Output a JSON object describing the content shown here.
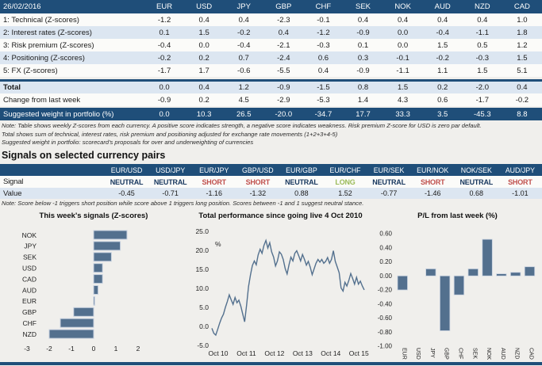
{
  "page": {
    "accent_navy": "#1f4e79",
    "row_alt": "#dce6f1",
    "bar_color": "#53708e",
    "bar_stroke": "#c9d2e0",
    "neutral_color": "#17375e",
    "short_color": "#c0504d",
    "long_color": "#9bbb59"
  },
  "scorecard_table": {
    "date": "26/02/2016",
    "currencies": [
      "EUR",
      "USD",
      "JPY",
      "GBP",
      "CHF",
      "SEK",
      "NOK",
      "AUD",
      "NZD",
      "CAD"
    ],
    "rows": [
      {
        "label": "1: Technical (Z-scores)",
        "values": [
          "-1.2",
          "0.4",
          "0.4",
          "-2.3",
          "-0.1",
          "0.4",
          "0.4",
          "0.4",
          "0.4",
          "1.0"
        ]
      },
      {
        "label": "2: Interest rates (Z-scores)",
        "values": [
          "0.1",
          "1.5",
          "-0.2",
          "0.4",
          "-1.2",
          "-0.9",
          "0.0",
          "-0.4",
          "-1.1",
          "1.8"
        ]
      },
      {
        "label": "3: Risk premium (Z-scores)",
        "values": [
          "-0.4",
          "0.0",
          "-0.4",
          "-2.1",
          "-0.3",
          "0.1",
          "0.0",
          "1.5",
          "0.5",
          "1.2"
        ]
      },
      {
        "label": "4: Positioning (Z-scores)",
        "values": [
          "-0.2",
          "0.2",
          "0.7",
          "-2.4",
          "0.6",
          "0.3",
          "-0.1",
          "-0.2",
          "-0.3",
          "1.5"
        ]
      },
      {
        "label": "5: FX (Z-scores)",
        "values": [
          "-1.7",
          "1.7",
          "-0.6",
          "-5.5",
          "0.4",
          "-0.9",
          "-1.1",
          "1.1",
          "1.5",
          "5.1"
        ]
      }
    ],
    "total_row": {
      "label": "Total",
      "values": [
        "0.0",
        "0.4",
        "1.2",
        "-0.9",
        "-1.5",
        "0.8",
        "1.5",
        "0.2",
        "-2.0",
        "0.4"
      ]
    },
    "change_row": {
      "label": "Change from last week",
      "values": [
        "-0.9",
        "0.2",
        "4.5",
        "-2.9",
        "-5.3",
        "1.4",
        "4.3",
        "0.6",
        "-1.7",
        "-0.2"
      ]
    },
    "weight_row": {
      "label": "Suggested weight in portfolio (%)",
      "values": [
        "0.0",
        "10.3",
        "26.5",
        "-20.0",
        "-34.7",
        "17.7",
        "33.3",
        "3.5",
        "-45.3",
        "8.8"
      ]
    },
    "notes": [
      "Note: Table shows weekly Z-scores from each currency. A positive score indicates strength, a negative score indicates weakness. Risk premium Z-score for USD is zero par default.",
      "Total shows sum of technical, interest rates, risk premium and positioning adjusted for exchange rate movements (1+2+3+4-5)",
      "Suggested weight in portfolio: scorecard's proposals for over and underweighting of currencies"
    ]
  },
  "signals_section": {
    "heading": "Signals on selected currency pairs",
    "pairs": [
      "EUR/USD",
      "USD/JPY",
      "EUR/JPY",
      "GBP/USD",
      "EUR/GBP",
      "EUR/CHF",
      "EUR/SEK",
      "EUR/NOK",
      "NOK/SEK",
      "AUD/JPY"
    ],
    "signal_label": "Signal",
    "value_label": "Value",
    "signals": [
      "NEUTRAL",
      "NEUTRAL",
      "SHORT",
      "SHORT",
      "NEUTRAL",
      "LONG",
      "NEUTRAL",
      "SHORT",
      "NEUTRAL",
      "SHORT"
    ],
    "values": [
      "-0.45",
      "-0.71",
      "-1.16",
      "-1.32",
      "0.88",
      "1.52",
      "-0.77",
      "-1.46",
      "0.68",
      "-1.01"
    ],
    "note": "Note: Score below -1 triggers short position while score above 1 triggers long position. Scores between -1 and 1 suggest neutral stance."
  },
  "chart_data": [
    {
      "type": "bar",
      "orientation": "horizontal",
      "title": "This week's signals (Z-scores)",
      "categories": [
        "NOK",
        "JPY",
        "SEK",
        "USD",
        "CAD",
        "AUD",
        "EUR",
        "GBP",
        "CHF",
        "NZD"
      ],
      "values": [
        1.5,
        1.2,
        0.8,
        0.4,
        0.4,
        0.2,
        0.0,
        -0.9,
        -1.5,
        -2.0
      ],
      "xticks": [
        -3,
        -2,
        -1,
        0,
        1,
        2
      ],
      "xlim": [
        -3.3,
        2.6
      ],
      "grid": false
    },
    {
      "type": "line",
      "title": "Total performance since going live 4 Oct 2010",
      "unit_label": "%",
      "ylim": [
        -5,
        25
      ],
      "yticks": [
        25,
        20,
        15,
        10,
        5,
        0,
        -5
      ],
      "ytick_labels": [
        "25.0",
        "20.0",
        "15.0",
        "10.0",
        "5.0",
        "0.0",
        "-5.0"
      ],
      "xtick_labels": [
        "Oct 10",
        "Oct 11",
        "Oct 12",
        "Oct 13",
        "Oct 14",
        "Oct 15"
      ],
      "grid": false,
      "values": [
        -0.5,
        -1.8,
        -2.3,
        -0.8,
        0.8,
        2.2,
        3.2,
        5.0,
        6.5,
        8.3,
        7.0,
        5.8,
        7.6,
        6.2,
        6.9,
        5.3,
        3.2,
        1.2,
        5.5,
        10.5,
        13.5,
        16.0,
        17.2,
        16.2,
        18.8,
        20.3,
        19.2,
        21.3,
        22.6,
        20.6,
        22.0,
        19.6,
        18.2,
        15.9,
        17.2,
        19.6,
        19.0,
        17.6,
        15.2,
        13.8,
        16.2,
        18.2,
        17.2,
        19.2,
        19.9,
        18.6,
        17.2,
        18.9,
        17.6,
        16.1,
        17.1,
        15.6,
        13.6,
        15.1,
        16.6,
        17.6,
        16.9,
        17.6,
        16.6,
        17.1,
        18.1,
        16.6,
        17.6,
        19.9,
        17.1,
        15.6,
        14.1,
        10.1,
        9.3,
        11.6,
        10.6,
        12.1,
        13.9,
        12.6,
        11.1,
        12.9,
        11.1,
        11.9,
        10.6,
        9.6
      ]
    },
    {
      "type": "bar",
      "orientation": "vertical",
      "title": "P/L from last week (%)",
      "categories": [
        "EUR",
        "USD",
        "JPY",
        "GBP",
        "CHF",
        "SEK",
        "NOK",
        "AUD",
        "NZD",
        "CAD"
      ],
      "values": [
        -0.2,
        0.0,
        0.1,
        -0.78,
        -0.27,
        0.1,
        0.52,
        0.03,
        0.05,
        0.13
      ],
      "ylim": [
        -1.0,
        0.6
      ],
      "yticks": [
        0.6,
        0.4,
        0.2,
        0.0,
        -0.2,
        -0.4,
        -0.6,
        -0.8,
        -1.0
      ],
      "ytick_labels": [
        "0.60",
        "0.40",
        "0.20",
        "0.00",
        "-0.20",
        "-0.40",
        "-0.60",
        "-0.80",
        "-1.00"
      ],
      "grid": false
    }
  ]
}
